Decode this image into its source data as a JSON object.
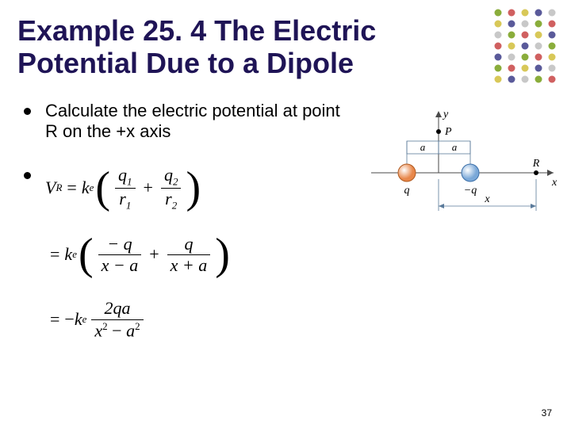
{
  "title": "Example 25. 4 The Electric Potential Due to a Dipole",
  "bullets": {
    "b0": "Calculate the electric potential at point R on the +x axis"
  },
  "formulas": {
    "f1": {
      "lhs_var": "V",
      "lhs_sub": "R",
      "coef": "k",
      "coef_sub": "e",
      "t1_num": "q",
      "t1_num_sub": "1",
      "t1_den": "r",
      "t1_den_sub": "1",
      "t2_num": "q",
      "t2_num_sub": "2",
      "t2_den": "r",
      "t2_den_sub": "2"
    },
    "f2": {
      "coef": "k",
      "coef_sub": "e",
      "t1_num": "− q",
      "t1_den": "x − a",
      "t2_num": "q",
      "t2_den": "x + a"
    },
    "f3": {
      "coef_prefix": "−",
      "coef": "k",
      "coef_sub": "e",
      "num": "2qa",
      "den_a": "x",
      "den_a_sup": "2",
      "den_mid": " − ",
      "den_b": "a",
      "den_b_sup": "2"
    }
  },
  "diagram": {
    "y_label": "y",
    "x_label": "x",
    "P_label": "P",
    "R_label": "R",
    "a_label": "a",
    "q_left": "q",
    "q_right": "−q",
    "x_span": "x",
    "colors": {
      "axis": "#4a4a4a",
      "left_sphere_fill": "#e8874a",
      "left_sphere_stroke": "#b05a1f",
      "right_sphere_fill": "#7aa8d8",
      "right_sphere_stroke": "#3c6fa8",
      "dim_line": "#5a7a9a"
    }
  },
  "deco_colors": {
    "c1": "#8aad3b",
    "c2": "#d06060",
    "c3": "#d8c858",
    "c4": "#5a5a9a",
    "c5": "#c8c8c8"
  },
  "page_number": "37"
}
